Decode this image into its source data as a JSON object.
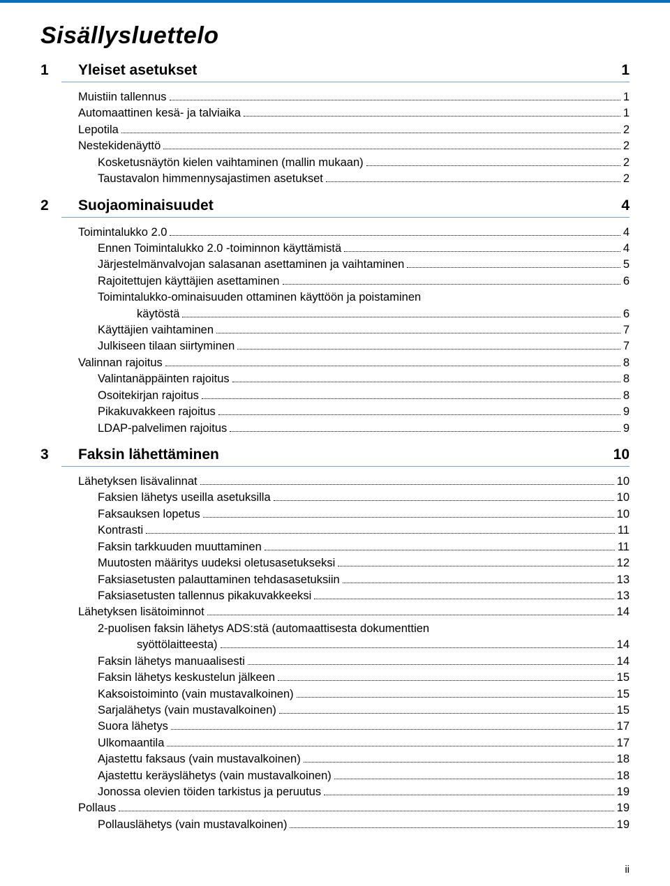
{
  "colors": {
    "accent": "#0070c0",
    "underline": "#6aa4d9",
    "text": "#000000",
    "background": "#ffffff"
  },
  "typography": {
    "title_size": 34,
    "chapter_size": 21,
    "entry_size": 16.5,
    "footer_size": 15
  },
  "title": "Sisällysluettelo",
  "footer_page": "ii",
  "chapters": [
    {
      "num": "1",
      "title": "Yleiset asetukset",
      "page": "1",
      "entries": [
        {
          "text": "Muistiin tallennus",
          "page": "1",
          "indent": 0
        },
        {
          "text": "Automaattinen kesä- ja talviaika",
          "page": "1",
          "indent": 0
        },
        {
          "text": "Lepotila",
          "page": "2",
          "indent": 0
        },
        {
          "text": "Nestekidenäyttö",
          "page": "2",
          "indent": 0
        },
        {
          "text": "Kosketusnäytön kielen vaihtaminen (mallin mukaan)",
          "page": "2",
          "indent": 1
        },
        {
          "text": "Taustavalon himmennysajastimen asetukset",
          "page": "2",
          "indent": 1
        }
      ]
    },
    {
      "num": "2",
      "title": "Suojaominaisuudet",
      "page": "4",
      "entries": [
        {
          "text": "Toimintalukko 2.0",
          "page": "4",
          "indent": 0
        },
        {
          "text": "Ennen Toimintalukko 2.0 -toiminnon käyttämistä",
          "page": "4",
          "indent": 1
        },
        {
          "text": "Järjestelmänvalvojan salasanan asettaminen ja vaihtaminen",
          "page": "5",
          "indent": 1
        },
        {
          "text": "Rajoitettujen käyttäjien asettaminen",
          "page": "6",
          "indent": 1
        },
        {
          "text": "Toimintalukko-ominaisuuden ottaminen käyttöön ja poistaminen",
          "wrap": "käytöstä",
          "page": "6",
          "indent": 1
        },
        {
          "text": "Käyttäjien vaihtaminen",
          "page": "7",
          "indent": 1
        },
        {
          "text": "Julkiseen tilaan siirtyminen",
          "page": "7",
          "indent": 1
        },
        {
          "text": "Valinnan rajoitus",
          "page": "8",
          "indent": 0
        },
        {
          "text": "Valintanäppäinten rajoitus",
          "page": "8",
          "indent": 1
        },
        {
          "text": "Osoitekirjan rajoitus",
          "page": "8",
          "indent": 1
        },
        {
          "text": "Pikakuvakkeen rajoitus",
          "page": "9",
          "indent": 1
        },
        {
          "text": "LDAP-palvelimen rajoitus",
          "page": "9",
          "indent": 1
        }
      ]
    },
    {
      "num": "3",
      "title": "Faksin lähettäminen",
      "page": "10",
      "entries": [
        {
          "text": "Lähetyksen lisävalinnat",
          "page": "10",
          "indent": 0
        },
        {
          "text": "Faksien lähetys useilla asetuksilla",
          "page": "10",
          "indent": 1
        },
        {
          "text": "Faksauksen lopetus",
          "page": "10",
          "indent": 1
        },
        {
          "text": "Kontrasti",
          "page": "11",
          "indent": 1
        },
        {
          "text": "Faksin tarkkuuden muuttaminen",
          "page": "11",
          "indent": 1
        },
        {
          "text": "Muutosten määritys uudeksi oletusasetukseksi",
          "page": "12",
          "indent": 1
        },
        {
          "text": "Faksiasetusten palauttaminen tehdasasetuksiin",
          "page": "13",
          "indent": 1
        },
        {
          "text": "Faksiasetusten tallennus pikakuvakkeeksi",
          "page": "13",
          "indent": 1
        },
        {
          "text": "Lähetyksen lisätoiminnot",
          "page": "14",
          "indent": 0
        },
        {
          "text": "2-puolisen faksin lähetys ADS:stä (automaattisesta dokumenttien",
          "wrap": "syöttölaitteesta)",
          "page": "14",
          "indent": 1
        },
        {
          "text": "Faksin lähetys manuaalisesti",
          "page": "14",
          "indent": 1
        },
        {
          "text": "Faksin lähetys keskustelun jälkeen",
          "page": "15",
          "indent": 1
        },
        {
          "text": "Kaksoistoiminto (vain mustavalkoinen)",
          "page": "15",
          "indent": 1
        },
        {
          "text": "Sarjalähetys (vain mustavalkoinen)",
          "page": "15",
          "indent": 1
        },
        {
          "text": "Suora lähetys",
          "page": "17",
          "indent": 1
        },
        {
          "text": "Ulkomaantila",
          "page": "17",
          "indent": 1
        },
        {
          "text": "Ajastettu faksaus (vain mustavalkoinen)",
          "page": "18",
          "indent": 1
        },
        {
          "text": "Ajastettu keräyslähetys (vain mustavalkoinen)",
          "page": "18",
          "indent": 1
        },
        {
          "text": "Jonossa olevien töiden tarkistus ja peruutus",
          "page": "19",
          "indent": 1
        },
        {
          "text": "Pollaus",
          "page": "19",
          "indent": 0
        },
        {
          "text": "Pollauslähetys (vain mustavalkoinen)",
          "page": "19",
          "indent": 1
        }
      ]
    }
  ]
}
